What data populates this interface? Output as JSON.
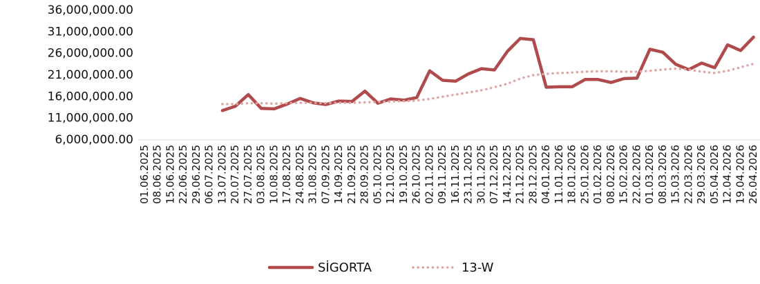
{
  "chart_data": {
    "type": "line",
    "categories": [
      "01.06.2025",
      "08.06.2025",
      "15.06.2025",
      "22.06.2025",
      "29.06.2025",
      "06.07.2025",
      "13.07.2025",
      "20.07.2025",
      "27.07.2025",
      "03.08.2025",
      "10.08.2025",
      "17.08.2025",
      "24.08.2025",
      "31.08.2025",
      "07.09.2025",
      "14.09.2025",
      "21.09.2025",
      "28.09.2025",
      "05.10.2025",
      "12.10.2025",
      "19.10.2025",
      "26.10.2025",
      "02.11.2025",
      "09.11.2025",
      "16.11.2025",
      "23.11.2025",
      "30.11.2025",
      "07.12.2025",
      "14.12.2025",
      "21.12.2025",
      "28.12.2025",
      "04.01.2026",
      "11.01.2026",
      "18.01.2026",
      "25.01.2026",
      "01.02.2026",
      "08.02.2026",
      "15.02.2026",
      "22.02.2026",
      "01.03.2026",
      "08.03.2026",
      "15.03.2026",
      "22.03.2026",
      "29.03.2026",
      "05.04.2026",
      "12.04.2026",
      "19.04.2026",
      "26.04.2026"
    ],
    "series": [
      {
        "name": "SİGORTA",
        "color": "#b04a4c",
        "style": "solid",
        "values": [
          null,
          null,
          null,
          null,
          null,
          null,
          12800000,
          13800000,
          16500000,
          13300000,
          13200000,
          14300000,
          15600000,
          14600000,
          14200000,
          15000000,
          14900000,
          17300000,
          14500000,
          15500000,
          15200000,
          15800000,
          22000000,
          19800000,
          19600000,
          21300000,
          22500000,
          22200000,
          26500000,
          29500000,
          29200000,
          18200000,
          18300000,
          18300000,
          20000000,
          20000000,
          19300000,
          20200000,
          20300000,
          27000000,
          26300000,
          23500000,
          22300000,
          23800000,
          22700000,
          28000000,
          26700000,
          29800000
        ]
      },
      {
        "name": "13-W",
        "color": "#e2a3a3",
        "style": "dotted",
        "values": [
          null,
          null,
          null,
          null,
          null,
          null,
          14300000,
          14300000,
          14500000,
          14500000,
          14400000,
          14500000,
          14600000,
          14600000,
          14500000,
          14600000,
          14600000,
          14700000,
          14800000,
          14900000,
          15000000,
          15100000,
          15500000,
          16000000,
          16500000,
          17000000,
          17500000,
          18200000,
          19000000,
          20200000,
          21000000,
          21300000,
          21500000,
          21600000,
          21800000,
          21900000,
          21900000,
          21800000,
          21800000,
          22000000,
          22300000,
          22500000,
          22300000,
          21800000,
          21500000,
          22000000,
          22800000,
          23600000
        ]
      }
    ],
    "ylim": [
      6000000,
      36000000
    ],
    "yticks": [
      {
        "value": 6000000,
        "label": "6,000,000.00"
      },
      {
        "value": 11000000,
        "label": "11,000,000.00"
      },
      {
        "value": 16000000,
        "label": "16,000,000.00"
      },
      {
        "value": 21000000,
        "label": "21,000,000.00"
      },
      {
        "value": 26000000,
        "label": "26,000,000.00"
      },
      {
        "value": 31000000,
        "label": "31,000,000.00"
      },
      {
        "value": 36000000,
        "label": "36,000,000.00"
      }
    ],
    "grid": false,
    "legend": "bottom"
  }
}
